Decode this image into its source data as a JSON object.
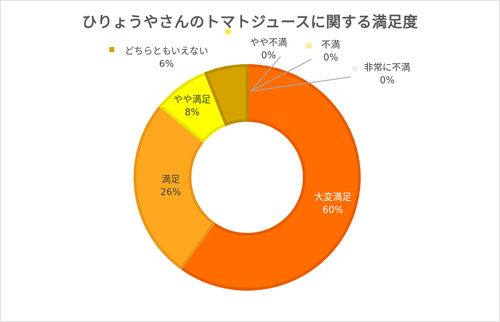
{
  "chart_data": {
    "type": "pie",
    "variant": "donut",
    "title": "ひりょうやさんのトマトジュースに関する満足度",
    "categories": [
      "大変満足",
      "満足",
      "やや満足",
      "どちらともいえない",
      "やや不満",
      "不満",
      "非常に不満"
    ],
    "values": [
      60,
      26,
      8,
      6,
      0,
      0,
      0
    ],
    "percent_labels": [
      "60%",
      "26%",
      "8%",
      "6%",
      "0%",
      "0%",
      "0%"
    ],
    "colors": [
      "#ff6d00",
      "#ffa81f",
      "#ffff00",
      "#d4a300",
      "#f2f23a",
      "#ffed8a",
      "#ededed"
    ],
    "border_colors": [
      "#e65c00",
      "#e8951a",
      "#e6e600",
      "#b88d00",
      "#d9d92e",
      "#e6d37a",
      "#d0d0d0"
    ],
    "legend": "none",
    "data_labels": "category-and-percent"
  }
}
